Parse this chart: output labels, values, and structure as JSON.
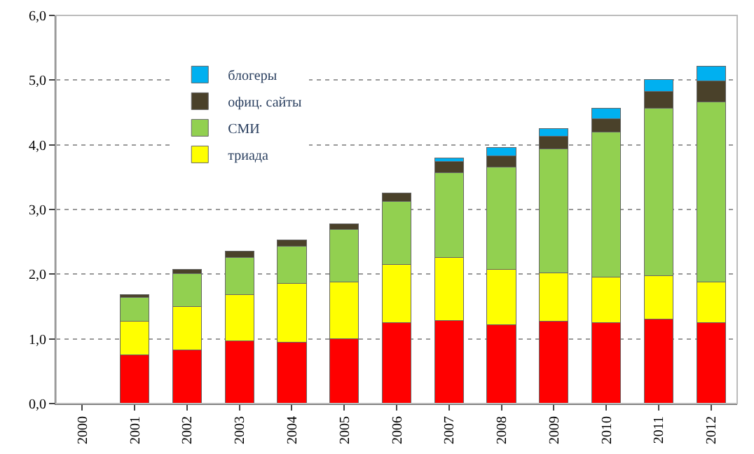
{
  "chart_data": {
    "type": "bar",
    "stacked": true,
    "categories": [
      "2000",
      "2001",
      "2002",
      "2003",
      "2004",
      "2005",
      "2006",
      "2007",
      "2008",
      "2009",
      "2010",
      "2011",
      "2012"
    ],
    "series": [
      {
        "color": "#ff0000",
        "values": [
          null,
          0.75,
          0.83,
          0.97,
          0.95,
          1.0,
          1.25,
          1.28,
          1.22,
          1.27,
          1.25,
          1.3,
          1.25
        ]
      },
      {
        "name": "триада",
        "color": "#ffff00",
        "values": [
          null,
          0.52,
          0.67,
          0.71,
          0.91,
          0.88,
          0.9,
          0.98,
          0.85,
          0.75,
          0.71,
          0.68,
          0.63
        ]
      },
      {
        "name": "СМИ",
        "color": "#92d050",
        "values": [
          null,
          0.37,
          0.51,
          0.58,
          0.57,
          0.81,
          0.97,
          1.31,
          1.59,
          1.92,
          2.24,
          2.58,
          2.78
        ]
      },
      {
        "name": "офиц. сайты",
        "color": "#4a412a",
        "values": [
          null,
          0.04,
          0.06,
          0.1,
          0.1,
          0.09,
          0.13,
          0.17,
          0.17,
          0.19,
          0.2,
          0.27,
          0.33
        ]
      },
      {
        "name": "блогеры",
        "color": "#00b0f0",
        "values": [
          null,
          null,
          null,
          null,
          null,
          null,
          null,
          0.06,
          0.13,
          0.12,
          0.17,
          0.18,
          0.23
        ]
      }
    ],
    "ylim": [
      0,
      6
    ],
    "yticks": [
      {
        "value": 0,
        "label": "0,0"
      },
      {
        "value": 1,
        "label": "1,0"
      },
      {
        "value": 2,
        "label": "2,0"
      },
      {
        "value": 3,
        "label": "3,0"
      },
      {
        "value": 4,
        "label": "4,0"
      },
      {
        "value": 5,
        "label": "5,0"
      },
      {
        "value": 6,
        "label": "6,0"
      }
    ],
    "grid": "y",
    "legend": "top left"
  }
}
